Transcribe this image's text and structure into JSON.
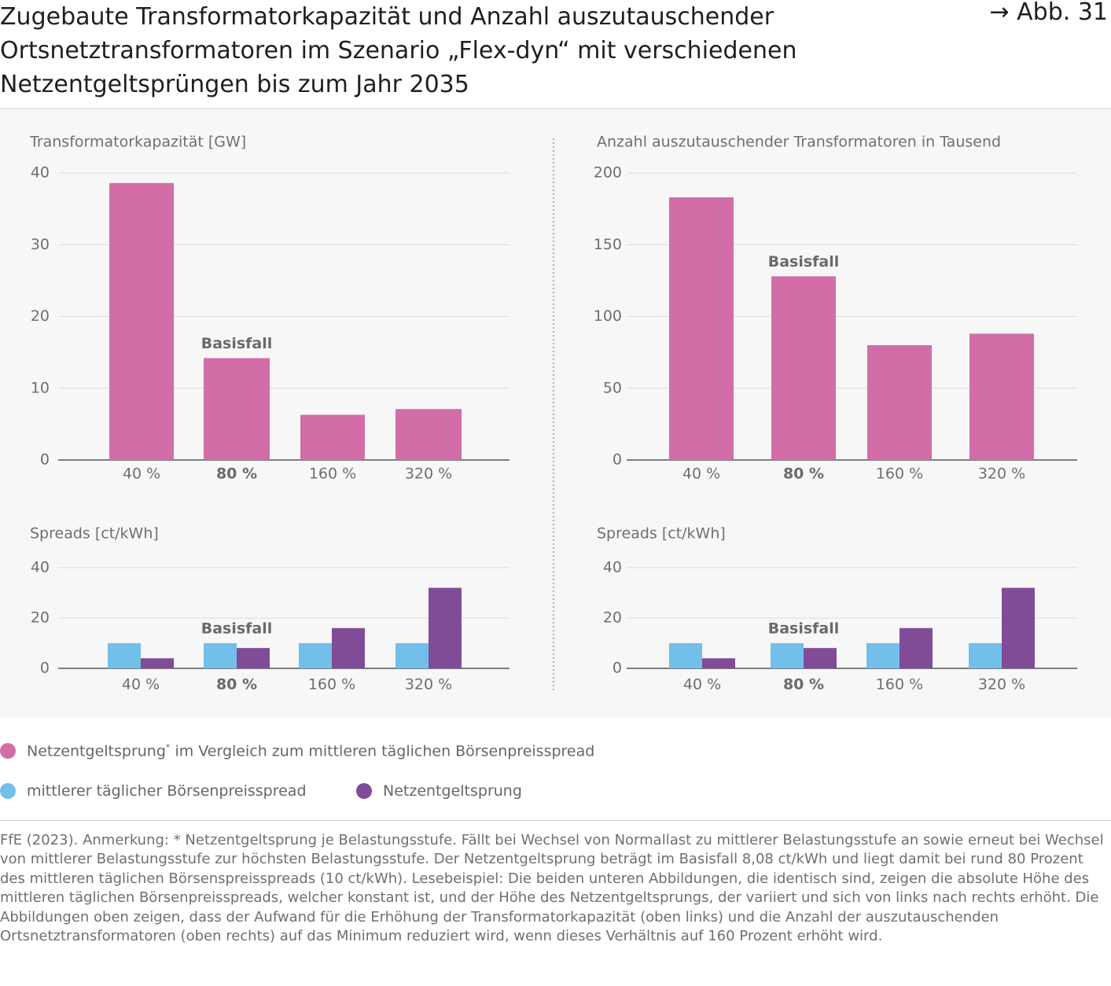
{
  "header": {
    "title": "Zugebaute Transformatorkapazität und Anzahl auszutauschender Ortsnetztransformatoren im Szenario „Flex-dyn“ mit verschiedenen Netzentgeltsprüngen bis zum Jahr 2035",
    "figure_ref": "→ Abb. 31"
  },
  "colors": {
    "pink": "#d26da8",
    "blue": "#72bfea",
    "purple": "#814c97",
    "grid": "#dcdcdc",
    "axis": "#555555",
    "text": "#6f6f6f"
  },
  "chart_data": [
    {
      "type": "bar",
      "ylabel": "Transformatorkapazität [GW]",
      "categories": [
        "40 %",
        "80 %",
        "160 %",
        "320 %"
      ],
      "highlight_category": "80 %",
      "annotation": {
        "category": "80 %",
        "text": "Basisfall"
      },
      "yticks": [
        0,
        10,
        20,
        30,
        40
      ],
      "ylim": [
        0,
        40
      ],
      "series": [
        {
          "values": [
            38.6,
            14.2,
            6.3,
            7.1
          ],
          "color": "pink"
        }
      ]
    },
    {
      "type": "bar",
      "ylabel": "Anzahl auszutauschender Transformatoren in Tausend",
      "categories": [
        "40 %",
        "80 %",
        "160 %",
        "320 %"
      ],
      "highlight_category": "80 %",
      "annotation": {
        "category": "80 %",
        "text": "Basisfall"
      },
      "yticks": [
        0,
        50,
        100,
        150,
        200
      ],
      "ylim": [
        0,
        200
      ],
      "series": [
        {
          "values": [
            183,
            128,
            80,
            88
          ],
          "color": "pink"
        }
      ]
    },
    {
      "type": "bar",
      "ylabel": "Spreads [ct/kWh]",
      "categories": [
        "40 %",
        "80 %",
        "160 %",
        "320 %"
      ],
      "highlight_category": "80 %",
      "annotation": {
        "category": "80 %",
        "text": "Basisfall"
      },
      "yticks": [
        0,
        20,
        40
      ],
      "ylim": [
        0,
        40
      ],
      "series": [
        {
          "values": [
            10,
            10,
            10,
            10
          ],
          "color": "blue"
        },
        {
          "values": [
            4,
            8.08,
            16,
            32
          ],
          "color": "purple"
        }
      ]
    },
    {
      "type": "bar",
      "ylabel": "Spreads [ct/kWh]",
      "categories": [
        "40 %",
        "80 %",
        "160 %",
        "320 %"
      ],
      "highlight_category": "80 %",
      "annotation": {
        "category": "80 %",
        "text": "Basisfall"
      },
      "yticks": [
        0,
        20,
        40
      ],
      "ylim": [
        0,
        40
      ],
      "series": [
        {
          "values": [
            10,
            10,
            10,
            10
          ],
          "color": "blue"
        },
        {
          "values": [
            4,
            8.08,
            16,
            32
          ],
          "color": "purple"
        }
      ]
    }
  ],
  "legend": {
    "item1": {
      "label": "Netzentgeltsprung",
      "sup": "*",
      "suffix": " im Vergleich zum mittleren täglichen Börsenpreisspread",
      "color": "pink"
    },
    "item2": {
      "label": "mittlerer täglicher Börsenpreisspread",
      "color": "blue"
    },
    "item3": {
      "label": "Netzentgeltsprung",
      "color": "purple"
    }
  },
  "note": "FfE (2023). Anmerkung: * Netzentgeltsprung je Belastungsstufe. Fällt bei Wechsel von Normallast zu mittlerer Belastungsstufe an sowie erneut bei Wechsel von mittlerer Belastungsstufe zur höchsten Belastungsstufe. Der Netzentgeltsprung beträgt im Basisfall 8,08 ct/kWh und liegt damit bei rund 80 Prozent des mittleren täglichen Börsenspreisspreads (10 ct/kWh). Lesebeispiel: Die beiden unteren Abbildungen, die identisch sind, zeigen die absolute Höhe des mittleren täglichen Börsenpreisspreads, welcher konstant ist, und der Höhe des Netzentgeltsprungs, der variiert und sich von links nach rechts erhöht. Die Abbildungen oben zeigen, dass der Aufwand für die Erhöhung der Transformatorkapazität (oben links) und die Anzahl der auszutauschenden Ortsnetztransformatoren (oben rechts) auf das Minimum reduziert wird, wenn dieses Verhältnis auf 160 Prozent erhöht wird."
}
